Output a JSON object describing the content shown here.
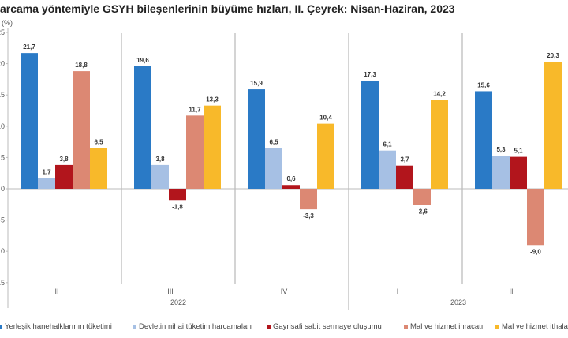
{
  "chart_data": {
    "type": "bar",
    "title": "arcama yöntemiyle GSYH bileşenlerinin büyüme hızları, II. Çeyrek: Nisan-Haziran, 2023",
    "ylabel": "(%)",
    "ylim": [
      -20,
      25
    ],
    "yticks": [
      25,
      20,
      15,
      10,
      5,
      0,
      -5,
      -10,
      -15
    ],
    "categories": [
      "II",
      "III",
      "IV",
      "I",
      "II"
    ],
    "year_labels": [
      {
        "label": "2022",
        "span": [
          0,
          2
        ]
      },
      {
        "label": "2023",
        "span": [
          3,
          4
        ]
      }
    ],
    "legend_position": "bottom",
    "series": [
      {
        "name": "Yerleşik hanehalklarının tüketimi",
        "color": "#2a7ac6",
        "values": [
          21.7,
          19.6,
          15.9,
          17.3,
          15.6
        ],
        "labels": [
          "21,7",
          "19,6",
          "15,9",
          "17,3",
          "15,6"
        ]
      },
      {
        "name": "Devletin nihai tüketim harcamaları",
        "color": "#a6c0e4",
        "values": [
          1.7,
          3.8,
          6.5,
          6.1,
          5.3
        ],
        "labels": [
          "1,7",
          "3,8",
          "6,5",
          "6,1",
          "5,3"
        ]
      },
      {
        "name": "Gayrisafi sabit sermaye oluşumu",
        "color": "#b2151c",
        "values": [
          3.8,
          -1.8,
          0.6,
          3.7,
          5.1
        ],
        "labels": [
          "3,8",
          "-1,8",
          "0,6",
          "3,7",
          "5,1"
        ]
      },
      {
        "name": "Mal ve hizmet ihracatı",
        "color": "#dc8873",
        "values": [
          18.8,
          11.7,
          -3.3,
          -2.6,
          -9.0
        ],
        "labels": [
          "18,8",
          "11,7",
          "-3,3",
          "-2,6",
          "-9,0"
        ]
      },
      {
        "name": "Mal ve hizmet ithalatı",
        "color": "#f8b92a",
        "values": [
          6.5,
          13.3,
          10.4,
          14.2,
          20.3
        ],
        "labels": [
          "6,5",
          "13,3",
          "10,4",
          "14,2",
          "20,3"
        ]
      }
    ]
  }
}
